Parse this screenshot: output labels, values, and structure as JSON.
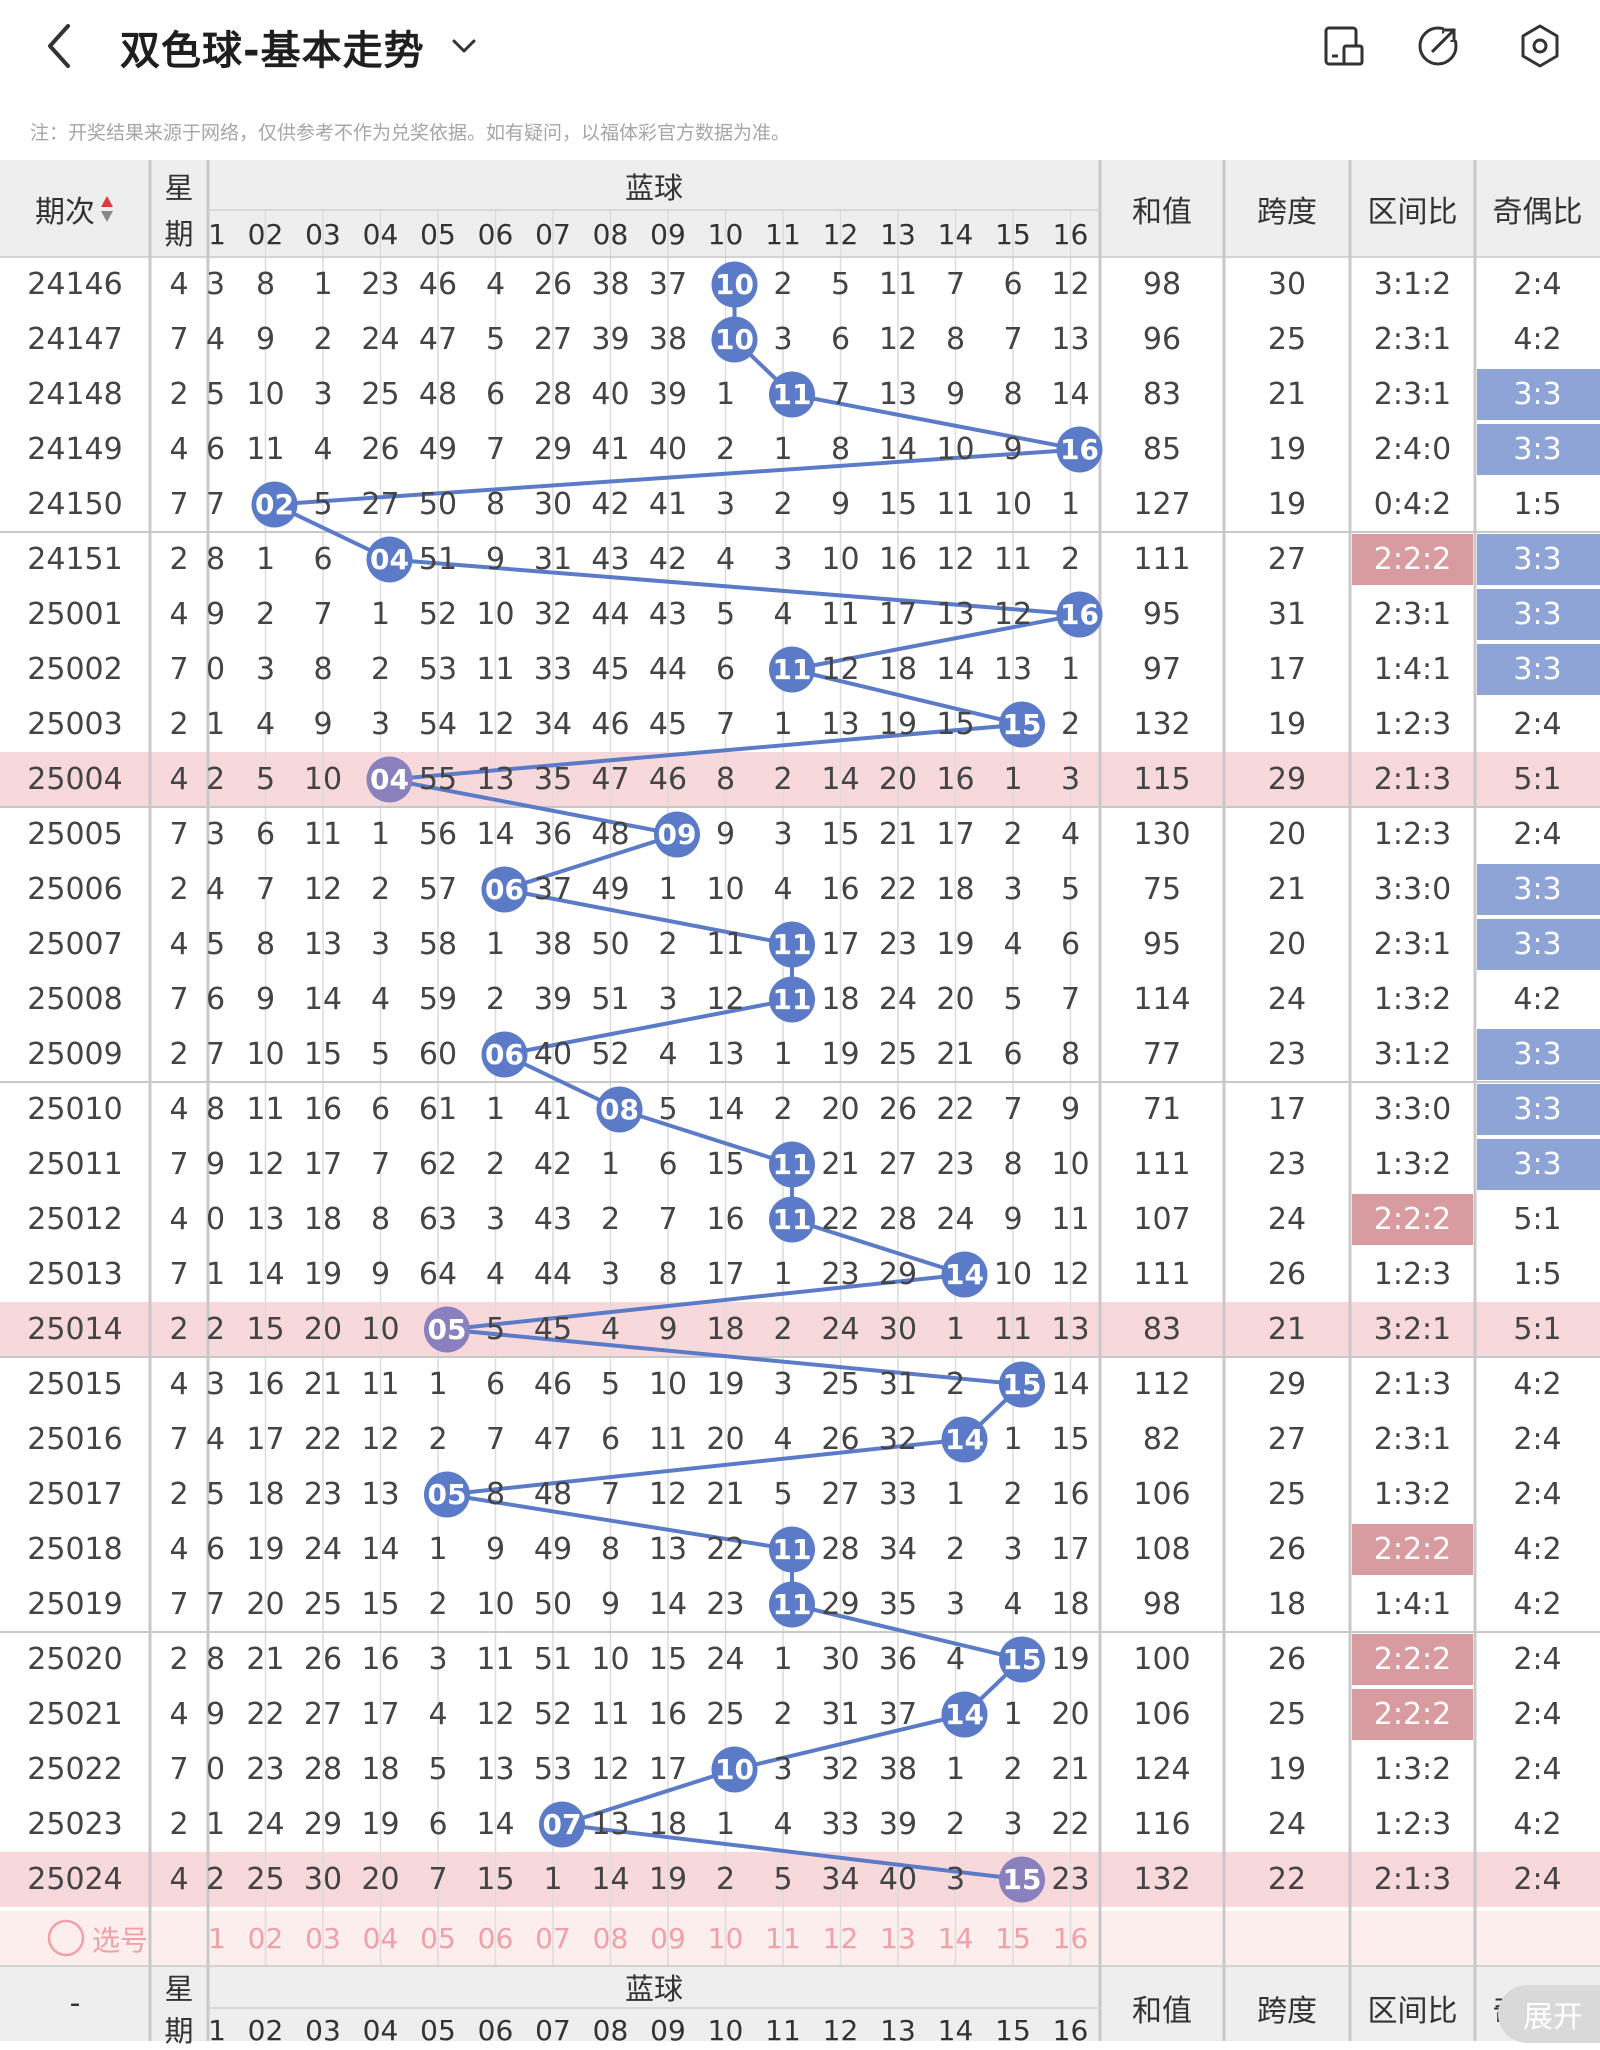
{
  "header": {
    "title": "双色球-基本走势",
    "note": "注：开奖结果来源于网络，仅供参考不作为兑奖依据。如有疑问，以福体彩官方数据为准。"
  },
  "table": {
    "col_period": "期次",
    "col_week_top": "星",
    "col_week_bottom": "期",
    "blue_title": "蓝球",
    "blue_numbers": [
      "1",
      "02",
      "03",
      "04",
      "05",
      "06",
      "07",
      "08",
      "09",
      "10",
      "11",
      "12",
      "13",
      "14",
      "15",
      "16"
    ],
    "col_sum": "和值",
    "col_span": "跨度",
    "col_zone": "区间比",
    "col_oddeven": "奇偶比",
    "select_label": "选号",
    "bottom_period": "-",
    "expand_label": "展开",
    "rows": [
      {
        "period": "24146",
        "week": "4",
        "cells": [
          "3",
          "8",
          "1",
          "23",
          "46",
          "4",
          "26",
          "38",
          "37",
          "10",
          "2",
          "5",
          "11",
          "7",
          "6",
          "12"
        ],
        "blue": 10,
        "sum": "98",
        "span": "30",
        "zone": "3:1:2",
        "oe": "2:4"
      },
      {
        "period": "24147",
        "week": "7",
        "cells": [
          "4",
          "9",
          "2",
          "24",
          "47",
          "5",
          "27",
          "39",
          "38",
          "10",
          "3",
          "6",
          "12",
          "8",
          "7",
          "13"
        ],
        "blue": 10,
        "sum": "96",
        "span": "25",
        "zone": "2:3:1",
        "oe": "4:2"
      },
      {
        "period": "24148",
        "week": "2",
        "cells": [
          "5",
          "10",
          "3",
          "25",
          "48",
          "6",
          "28",
          "40",
          "39",
          "1",
          "11",
          "7",
          "13",
          "9",
          "8",
          "14"
        ],
        "blue": 11,
        "sum": "83",
        "span": "21",
        "zone": "2:3:1",
        "oe": "3:3",
        "oe_hl": true
      },
      {
        "period": "24149",
        "week": "4",
        "cells": [
          "6",
          "11",
          "4",
          "26",
          "49",
          "7",
          "29",
          "41",
          "40",
          "2",
          "1",
          "8",
          "14",
          "10",
          "9",
          "16"
        ],
        "blue": 16,
        "sum": "85",
        "span": "19",
        "zone": "2:4:0",
        "oe": "3:3",
        "oe_hl": true
      },
      {
        "period": "24150",
        "week": "7",
        "cells": [
          "7",
          "02",
          "5",
          "27",
          "50",
          "8",
          "30",
          "42",
          "41",
          "3",
          "2",
          "9",
          "15",
          "11",
          "10",
          "1"
        ],
        "blue": 2,
        "sum": "127",
        "span": "19",
        "zone": "0:4:2",
        "oe": "1:5"
      },
      {
        "period": "24151",
        "week": "2",
        "cells": [
          "8",
          "1",
          "6",
          "04",
          "51",
          "9",
          "31",
          "43",
          "42",
          "4",
          "3",
          "10",
          "16",
          "12",
          "11",
          "2"
        ],
        "blue": 4,
        "sum": "111",
        "span": "27",
        "zone": "2:2:2",
        "zone_hl": true,
        "oe": "3:3",
        "oe_hl": true
      },
      {
        "period": "25001",
        "week": "4",
        "cells": [
          "9",
          "2",
          "7",
          "1",
          "52",
          "10",
          "32",
          "44",
          "43",
          "5",
          "4",
          "11",
          "17",
          "13",
          "12",
          "16"
        ],
        "blue": 16,
        "sum": "95",
        "span": "31",
        "zone": "2:3:1",
        "oe": "3:3",
        "oe_hl": true
      },
      {
        "period": "25002",
        "week": "7",
        "cells": [
          "0",
          "3",
          "8",
          "2",
          "53",
          "11",
          "33",
          "45",
          "44",
          "6",
          "11",
          "12",
          "18",
          "14",
          "13",
          "1"
        ],
        "blue": 11,
        "sum": "97",
        "span": "17",
        "zone": "1:4:1",
        "oe": "3:3",
        "oe_hl": true
      },
      {
        "period": "25003",
        "week": "2",
        "cells": [
          "1",
          "4",
          "9",
          "3",
          "54",
          "12",
          "34",
          "46",
          "45",
          "7",
          "1",
          "13",
          "19",
          "15",
          "15",
          "2"
        ],
        "blue": 15,
        "sum": "132",
        "span": "19",
        "zone": "1:2:3",
        "oe": "2:4"
      },
      {
        "period": "25004",
        "week": "4",
        "cells": [
          "2",
          "5",
          "10",
          "04",
          "55",
          "13",
          "35",
          "47",
          "46",
          "8",
          "2",
          "14",
          "20",
          "16",
          "1",
          "3"
        ],
        "blue": 4,
        "sum": "115",
        "span": "29",
        "zone": "2:1:3",
        "oe": "5:1",
        "row_hl": true
      },
      {
        "period": "25005",
        "week": "7",
        "cells": [
          "3",
          "6",
          "11",
          "1",
          "56",
          "14",
          "36",
          "48",
          "09",
          "9",
          "3",
          "15",
          "21",
          "17",
          "2",
          "4"
        ],
        "blue": 9,
        "sum": "130",
        "span": "20",
        "zone": "1:2:3",
        "oe": "2:4"
      },
      {
        "period": "25006",
        "week": "2",
        "cells": [
          "4",
          "7",
          "12",
          "2",
          "57",
          "06",
          "37",
          "49",
          "1",
          "10",
          "4",
          "16",
          "22",
          "18",
          "3",
          "5"
        ],
        "blue": 6,
        "sum": "75",
        "span": "21",
        "zone": "3:3:0",
        "oe": "3:3",
        "oe_hl": true
      },
      {
        "period": "25007",
        "week": "4",
        "cells": [
          "5",
          "8",
          "13",
          "3",
          "58",
          "1",
          "38",
          "50",
          "2",
          "11",
          "11",
          "17",
          "23",
          "19",
          "4",
          "6"
        ],
        "blue": 11,
        "sum": "95",
        "span": "20",
        "zone": "2:3:1",
        "oe": "3:3",
        "oe_hl": true
      },
      {
        "period": "25008",
        "week": "7",
        "cells": [
          "6",
          "9",
          "14",
          "4",
          "59",
          "2",
          "39",
          "51",
          "3",
          "12",
          "11",
          "18",
          "24",
          "20",
          "5",
          "7"
        ],
        "blue": 11,
        "sum": "114",
        "span": "24",
        "zone": "1:3:2",
        "oe": "4:2"
      },
      {
        "period": "25009",
        "week": "2",
        "cells": [
          "7",
          "10",
          "15",
          "5",
          "60",
          "06",
          "40",
          "52",
          "4",
          "13",
          "1",
          "19",
          "25",
          "21",
          "6",
          "8"
        ],
        "blue": 6,
        "sum": "77",
        "span": "23",
        "zone": "3:1:2",
        "oe": "3:3",
        "oe_hl": true
      },
      {
        "period": "25010",
        "week": "4",
        "cells": [
          "8",
          "11",
          "16",
          "6",
          "61",
          "1",
          "41",
          "08",
          "5",
          "14",
          "2",
          "20",
          "26",
          "22",
          "7",
          "9"
        ],
        "blue": 8,
        "sum": "71",
        "span": "17",
        "zone": "3:3:0",
        "oe": "3:3",
        "oe_hl": true
      },
      {
        "period": "25011",
        "week": "7",
        "cells": [
          "9",
          "12",
          "17",
          "7",
          "62",
          "2",
          "42",
          "1",
          "6",
          "15",
          "11",
          "21",
          "27",
          "23",
          "8",
          "10"
        ],
        "blue": 11,
        "sum": "111",
        "span": "23",
        "zone": "1:3:2",
        "oe": "3:3",
        "oe_hl": true
      },
      {
        "period": "25012",
        "week": "4",
        "cells": [
          "0",
          "13",
          "18",
          "8",
          "63",
          "3",
          "43",
          "2",
          "7",
          "16",
          "11",
          "22",
          "28",
          "24",
          "9",
          "11"
        ],
        "blue": 11,
        "sum": "107",
        "span": "24",
        "zone": "2:2:2",
        "zone_hl": true,
        "oe": "5:1"
      },
      {
        "period": "25013",
        "week": "7",
        "cells": [
          "1",
          "14",
          "19",
          "9",
          "64",
          "4",
          "44",
          "3",
          "8",
          "17",
          "1",
          "23",
          "29",
          "14",
          "10",
          "12"
        ],
        "blue": 14,
        "sum": "111",
        "span": "26",
        "zone": "1:2:3",
        "oe": "1:5"
      },
      {
        "period": "25014",
        "week": "2",
        "cells": [
          "2",
          "15",
          "20",
          "10",
          "05",
          "5",
          "45",
          "4",
          "9",
          "18",
          "2",
          "24",
          "30",
          "1",
          "11",
          "13"
        ],
        "blue": 5,
        "sum": "83",
        "span": "21",
        "zone": "3:2:1",
        "oe": "5:1",
        "row_hl": true
      },
      {
        "period": "25015",
        "week": "4",
        "cells": [
          "3",
          "16",
          "21",
          "11",
          "1",
          "6",
          "46",
          "5",
          "10",
          "19",
          "3",
          "25",
          "31",
          "2",
          "15",
          "14"
        ],
        "blue": 15,
        "sum": "112",
        "span": "29",
        "zone": "2:1:3",
        "oe": "4:2"
      },
      {
        "period": "25016",
        "week": "7",
        "cells": [
          "4",
          "17",
          "22",
          "12",
          "2",
          "7",
          "47",
          "6",
          "11",
          "20",
          "4",
          "26",
          "32",
          "14",
          "1",
          "15"
        ],
        "blue": 14,
        "sum": "82",
        "span": "27",
        "zone": "2:3:1",
        "oe": "2:4"
      },
      {
        "period": "25017",
        "week": "2",
        "cells": [
          "5",
          "18",
          "23",
          "13",
          "05",
          "8",
          "48",
          "7",
          "12",
          "21",
          "5",
          "27",
          "33",
          "1",
          "2",
          "16"
        ],
        "blue": 5,
        "sum": "106",
        "span": "25",
        "zone": "1:3:2",
        "oe": "2:4"
      },
      {
        "period": "25018",
        "week": "4",
        "cells": [
          "6",
          "19",
          "24",
          "14",
          "1",
          "9",
          "49",
          "8",
          "13",
          "22",
          "11",
          "28",
          "34",
          "2",
          "3",
          "17"
        ],
        "blue": 11,
        "sum": "108",
        "span": "26",
        "zone": "2:2:2",
        "zone_hl": true,
        "oe": "4:2"
      },
      {
        "period": "25019",
        "week": "7",
        "cells": [
          "7",
          "20",
          "25",
          "15",
          "2",
          "10",
          "50",
          "9",
          "14",
          "23",
          "11",
          "29",
          "35",
          "3",
          "4",
          "18"
        ],
        "blue": 11,
        "sum": "98",
        "span": "18",
        "zone": "1:4:1",
        "oe": "4:2"
      },
      {
        "period": "25020",
        "week": "2",
        "cells": [
          "8",
          "21",
          "26",
          "16",
          "3",
          "11",
          "51",
          "10",
          "15",
          "24",
          "1",
          "30",
          "36",
          "4",
          "15",
          "19"
        ],
        "blue": 15,
        "sum": "100",
        "span": "26",
        "zone": "2:2:2",
        "zone_hl": true,
        "oe": "2:4"
      },
      {
        "period": "25021",
        "week": "4",
        "cells": [
          "9",
          "22",
          "27",
          "17",
          "4",
          "12",
          "52",
          "11",
          "16",
          "25",
          "2",
          "31",
          "37",
          "14",
          "1",
          "20"
        ],
        "blue": 14,
        "sum": "106",
        "span": "25",
        "zone": "2:2:2",
        "zone_hl": true,
        "oe": "2:4"
      },
      {
        "period": "25022",
        "week": "7",
        "cells": [
          "0",
          "23",
          "28",
          "18",
          "5",
          "13",
          "53",
          "12",
          "17",
          "10",
          "3",
          "32",
          "38",
          "1",
          "2",
          "21"
        ],
        "blue": 10,
        "sum": "124",
        "span": "19",
        "zone": "1:3:2",
        "oe": "2:4"
      },
      {
        "period": "25023",
        "week": "2",
        "cells": [
          "1",
          "24",
          "29",
          "19",
          "6",
          "14",
          "07",
          "13",
          "18",
          "1",
          "4",
          "33",
          "39",
          "2",
          "3",
          "22"
        ],
        "blue": 7,
        "sum": "116",
        "span": "24",
        "zone": "1:2:3",
        "oe": "4:2"
      },
      {
        "period": "25024",
        "week": "4",
        "cells": [
          "2",
          "25",
          "30",
          "20",
          "7",
          "15",
          "1",
          "14",
          "19",
          "2",
          "5",
          "34",
          "40",
          "3",
          "15",
          "23"
        ],
        "blue": 15,
        "sum": "132",
        "span": "22",
        "zone": "2:1:3",
        "oe": "2:4",
        "row_hl": true
      }
    ]
  },
  "colors": {
    "ball_blue": "#5b7bc8",
    "ball_purple": "#8a80bd",
    "row_highlight": "#f7d9dc",
    "oe_highlight": "#8ea4d6",
    "zone_highlight": "#d89b9f",
    "select_red": "#f0a0a8",
    "select_bg": "#fdeeee",
    "header_bg": "#eeeeee"
  }
}
